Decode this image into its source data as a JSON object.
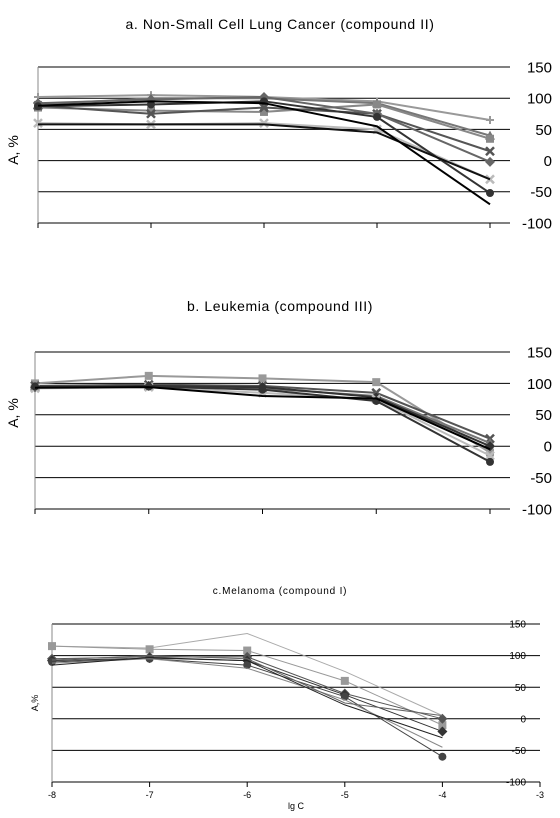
{
  "chart_data": [
    {
      "type": "line",
      "title": "a. Non-Small Cell Lung Cancer (compound II)",
      "ylabel": "A, %",
      "xlabel": "",
      "x": [
        -8,
        -7,
        -6,
        -5,
        -4
      ],
      "xlim": [
        -8,
        -4
      ],
      "ylim": [
        -100,
        150
      ],
      "yticks": [
        "150",
        "100",
        "50",
        "0",
        "-50",
        "-100"
      ],
      "xticks": [],
      "grid": true,
      "series": [
        {
          "values": [
            102,
            105,
            102,
            95,
            65
          ],
          "color": "#999999",
          "marker": "plus"
        },
        {
          "values": [
            90,
            100,
            100,
            92,
            40
          ],
          "color": "#777777",
          "marker": "triangle"
        },
        {
          "values": [
            85,
            80,
            78,
            90,
            35
          ],
          "color": "#888888",
          "marker": "square"
        },
        {
          "values": [
            88,
            75,
            85,
            75,
            15
          ],
          "color": "#555555",
          "marker": "x"
        },
        {
          "values": [
            92,
            98,
            102,
            75,
            -2
          ],
          "color": "#666666",
          "marker": "diamond"
        },
        {
          "values": [
            60,
            58,
            60,
            50,
            -30
          ],
          "color": "#bbbbbb",
          "marker": "x"
        },
        {
          "values": [
            87,
            90,
            95,
            70,
            -52
          ],
          "color": "#333333",
          "marker": "circle"
        },
        {
          "values": [
            58,
            58,
            58,
            45,
            -30
          ],
          "color": "#111111",
          "marker": "none"
        },
        {
          "values": [
            88,
            95,
            92,
            55,
            -70
          ],
          "color": "#000000",
          "marker": "none"
        }
      ]
    },
    {
      "type": "line",
      "title": "b. Leukemia (compound III)",
      "ylabel": "A, %",
      "xlabel": "",
      "x": [
        -8,
        -7,
        -6,
        -5,
        -4
      ],
      "xlim": [
        -8,
        -4
      ],
      "ylim": [
        -100,
        150
      ],
      "yticks": [
        "150",
        "100",
        "50",
        "0",
        "-50",
        "-100"
      ],
      "xticks": [],
      "grid": true,
      "series": [
        {
          "values": [
            100,
            112,
            108,
            102,
            -10
          ],
          "color": "#999999",
          "marker": "square"
        },
        {
          "values": [
            96,
            98,
            96,
            85,
            12
          ],
          "color": "#555555",
          "marker": "x"
        },
        {
          "values": [
            95,
            96,
            92,
            80,
            5
          ],
          "color": "#777777",
          "marker": "triangle"
        },
        {
          "values": [
            94,
            96,
            94,
            78,
            0
          ],
          "color": "#333333",
          "marker": "diamond"
        },
        {
          "values": [
            92,
            94,
            85,
            75,
            -15
          ],
          "color": "#bbbbbb",
          "marker": "x"
        },
        {
          "values": [
            95,
            95,
            90,
            72,
            -25
          ],
          "color": "#333333",
          "marker": "circle"
        },
        {
          "values": [
            93,
            94,
            80,
            76,
            -5
          ],
          "color": "#000000",
          "marker": "none"
        }
      ]
    },
    {
      "type": "line",
      "title": "c.Melanoma (compound I)",
      "ylabel": "A,%",
      "xlabel": "lg C",
      "x": [
        -8,
        -7,
        -6,
        -5,
        -4
      ],
      "xlim": [
        -8,
        -3
      ],
      "ylim": [
        -100,
        150
      ],
      "yticks": [
        "150",
        "100",
        "50",
        "0",
        "-50",
        "-100"
      ],
      "xticks": [
        "-8",
        "-7",
        "-6",
        "-5",
        "-4",
        "-3"
      ],
      "grid": true,
      "series": [
        {
          "values": [
            115,
            112,
            135,
            75,
            5
          ],
          "color": "#aaaaaa",
          "marker": "none"
        },
        {
          "values": [
            115,
            110,
            108,
            60,
            -10
          ],
          "color": "#999999",
          "marker": "square"
        },
        {
          "values": [
            95,
            98,
            98,
            40,
            0
          ],
          "color": "#555555",
          "marker": "diamond"
        },
        {
          "values": [
            92,
            96,
            92,
            38,
            -20
          ],
          "color": "#333333",
          "marker": "diamond"
        },
        {
          "values": [
            90,
            95,
            85,
            35,
            -60
          ],
          "color": "#444444",
          "marker": "circle"
        },
        {
          "values": [
            88,
            95,
            80,
            30,
            -45
          ],
          "color": "#888888",
          "marker": "none"
        },
        {
          "values": [
            93,
            100,
            95,
            25,
            5
          ],
          "color": "#666666",
          "marker": "none"
        },
        {
          "values": [
            85,
            97,
            92,
            22,
            -30
          ],
          "color": "#222222",
          "marker": "none"
        }
      ]
    }
  ]
}
